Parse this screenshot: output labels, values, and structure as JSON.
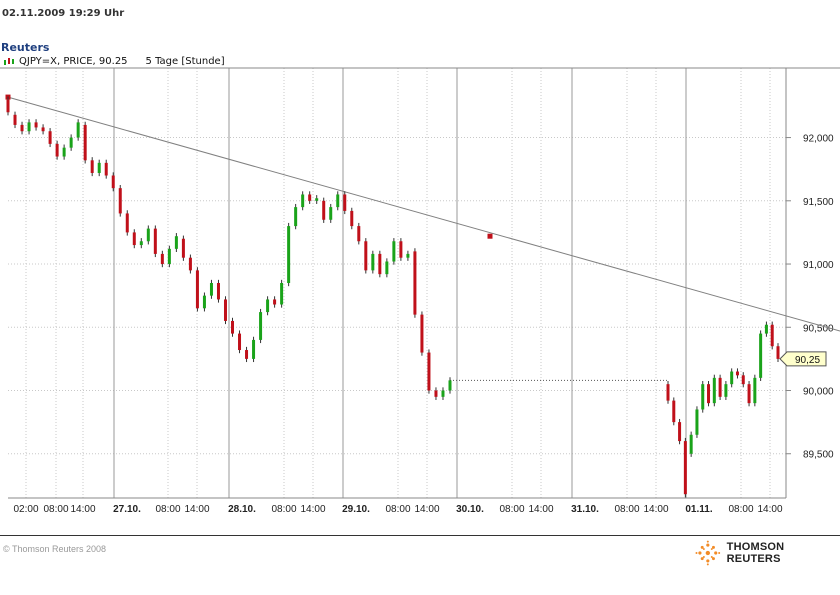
{
  "header": {
    "timestamp": "02.11.2009  19:29 Uhr",
    "brand": "Reuters"
  },
  "legend": {
    "instrument": "QJPY=X, PRICE, 90.25",
    "period": "5 Tage [Stunde]",
    "icon": "candlestick-icon"
  },
  "footer": {
    "copyright": "© Thomson Reuters 2008",
    "logo_text": "THOMSON REUTERS",
    "logo_icon": "thomson-reuters-sunburst-icon"
  },
  "colors": {
    "up": "#1aa31a",
    "down": "#c0101a",
    "trendline": "#808080",
    "marker": "#c0101a",
    "last_price_box": "#ffffcc"
  },
  "chart_data": {
    "type": "candlestick",
    "title": "",
    "instrument": "QJPY=X",
    "last_price": 90.25,
    "last_price_label": "90,25",
    "ylim": [
      89.15,
      92.55
    ],
    "y_ticks": [
      89.5,
      90.0,
      90.5,
      91.0,
      91.5,
      92.0
    ],
    "y_tick_labels": [
      "89,500",
      "90,000",
      "90,500",
      "91,000",
      "91,500",
      "92,000"
    ],
    "x_tick_labels": [
      "02:00",
      "08:00",
      "14:00",
      "27.10.",
      "08:00",
      "14:00",
      "28.10.",
      "08:00",
      "14:00",
      "29.10.",
      "08:00",
      "14:00",
      "30.10.",
      "08:00",
      "14:00",
      "31.10.",
      "08:00",
      "14:00",
      "01.11.",
      "08:00",
      "14:00"
    ],
    "grid": true,
    "candles": [
      [
        92.3,
        92.2
      ],
      [
        92.18,
        92.1
      ],
      [
        92.1,
        92.05
      ],
      [
        92.05,
        92.12
      ],
      [
        92.12,
        92.08
      ],
      [
        92.08,
        92.05
      ],
      [
        92.05,
        91.95
      ],
      [
        91.95,
        91.85
      ],
      [
        91.85,
        91.92
      ],
      [
        91.92,
        92.0
      ],
      [
        92.0,
        92.12
      ],
      [
        92.1,
        91.82
      ],
      [
        91.82,
        91.72
      ],
      [
        91.72,
        91.8
      ],
      [
        91.8,
        91.7
      ],
      [
        91.7,
        91.6
      ],
      [
        91.6,
        91.4
      ],
      [
        91.4,
        91.25
      ],
      [
        91.25,
        91.15
      ],
      [
        91.15,
        91.18
      ],
      [
        91.18,
        91.28
      ],
      [
        91.28,
        91.08
      ],
      [
        91.08,
        91.0
      ],
      [
        91.0,
        91.12
      ],
      [
        91.12,
        91.22
      ],
      [
        91.2,
        91.05
      ],
      [
        91.05,
        90.95
      ],
      [
        90.95,
        90.65
      ],
      [
        90.65,
        90.75
      ],
      [
        90.75,
        90.85
      ],
      [
        90.85,
        90.72
      ],
      [
        90.72,
        90.55
      ],
      [
        90.55,
        90.45
      ],
      [
        90.45,
        90.32
      ],
      [
        90.32,
        90.25
      ],
      [
        90.25,
        90.4
      ],
      [
        90.4,
        90.62
      ],
      [
        90.62,
        90.72
      ],
      [
        90.72,
        90.68
      ],
      [
        90.68,
        90.85
      ],
      [
        90.85,
        91.3
      ],
      [
        91.3,
        91.45
      ],
      [
        91.45,
        91.55
      ],
      [
        91.55,
        91.5
      ],
      [
        91.5,
        91.52
      ],
      [
        91.5,
        91.35
      ],
      [
        91.35,
        91.45
      ],
      [
        91.45,
        91.55
      ],
      [
        91.55,
        91.42
      ],
      [
        91.42,
        91.3
      ],
      [
        91.3,
        91.18
      ],
      [
        91.18,
        90.95
      ],
      [
        90.95,
        91.08
      ],
      [
        91.08,
        90.92
      ],
      [
        90.92,
        91.02
      ],
      [
        91.02,
        91.18
      ],
      [
        91.18,
        91.05
      ],
      [
        91.05,
        91.08
      ],
      [
        91.1,
        90.6
      ],
      [
        90.6,
        90.3
      ],
      [
        90.3,
        90.0
      ],
      [
        90.0,
        89.95
      ],
      [
        89.95,
        90.0
      ],
      [
        90.0,
        90.08
      ],
      [
        90.05,
        89.92
      ],
      [
        89.92,
        89.75
      ],
      [
        89.75,
        89.6
      ],
      [
        89.6,
        89.18
      ],
      [
        89.5,
        89.65
      ],
      [
        89.65,
        89.85
      ],
      [
        89.85,
        90.05
      ],
      [
        90.05,
        89.9
      ],
      [
        89.9,
        90.1
      ],
      [
        90.1,
        89.95
      ],
      [
        89.95,
        90.05
      ],
      [
        90.05,
        90.15
      ],
      [
        90.15,
        90.12
      ],
      [
        90.12,
        90.05
      ],
      [
        90.05,
        89.9
      ],
      [
        89.9,
        90.1
      ],
      [
        90.1,
        90.45
      ],
      [
        90.45,
        90.52
      ],
      [
        90.52,
        90.35
      ],
      [
        90.35,
        90.25
      ]
    ]
  }
}
